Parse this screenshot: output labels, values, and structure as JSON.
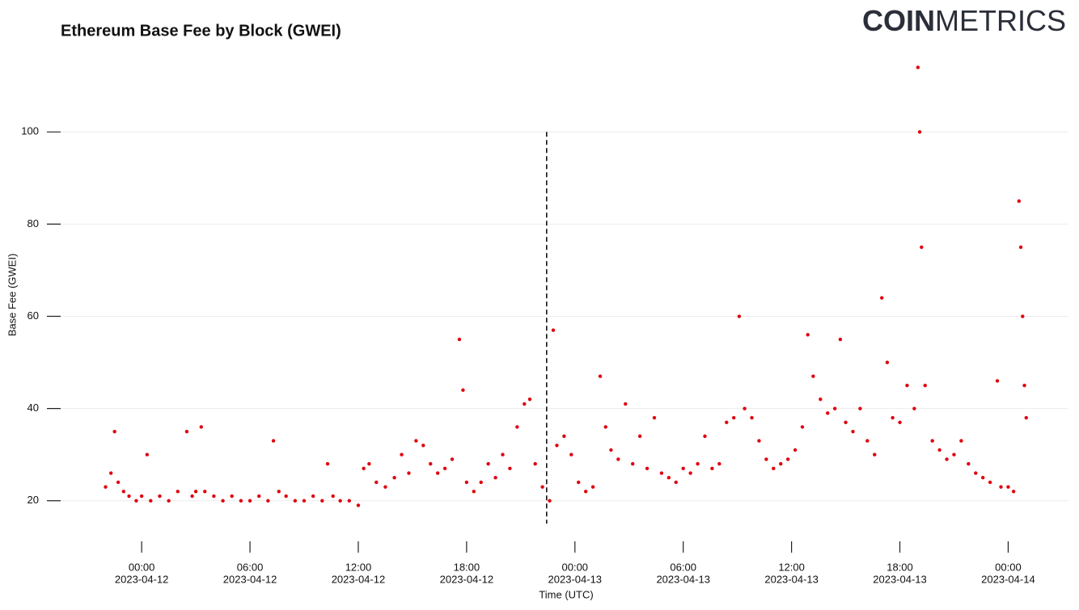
{
  "logo": {
    "bold": "COIN",
    "light": "METRICS"
  },
  "chart_data": {
    "type": "scatter",
    "title": "Ethereum Base Fee by Block (GWEI)",
    "x_label": "Time (UTC)",
    "y_label": "Base Fee (GWEI)",
    "color": "#e0000f",
    "grid": true,
    "vline": "2023-04-12T22:26",
    "xlim": [
      "2023-04-11T20:38",
      "2023-04-14T02:24"
    ],
    "ylim": [
      14,
      116
    ],
    "yticks": [
      20,
      40,
      60,
      80,
      100
    ],
    "xticks": [
      {
        "value": "2023-04-12T00:00",
        "label": [
          "00:00",
          "2023-04-12"
        ]
      },
      {
        "value": "2023-04-12T06:00",
        "label": [
          "06:00",
          "2023-04-12"
        ]
      },
      {
        "value": "2023-04-12T12:00",
        "label": [
          "12:00",
          "2023-04-12"
        ]
      },
      {
        "value": "2023-04-12T18:00",
        "label": [
          "18:00",
          "2023-04-12"
        ]
      },
      {
        "value": "2023-04-13T00:00",
        "label": [
          "00:00",
          "2023-04-13"
        ]
      },
      {
        "value": "2023-04-13T06:00",
        "label": [
          "06:00",
          "2023-04-13"
        ]
      },
      {
        "value": "2023-04-13T12:00",
        "label": [
          "12:00",
          "2023-04-13"
        ]
      },
      {
        "value": "2023-04-13T18:00",
        "label": [
          "18:00",
          "2023-04-13"
        ]
      },
      {
        "value": "2023-04-14T00:00",
        "label": [
          "00:00",
          "2023-04-14"
        ]
      }
    ],
    "x": [
      "2023-04-11T22:00",
      "2023-04-11T22:18",
      "2023-04-11T22:30",
      "2023-04-11T22:42",
      "2023-04-11T23:00",
      "2023-04-11T23:18",
      "2023-04-11T23:42",
      "2023-04-12T00:00",
      "2023-04-12T00:18",
      "2023-04-12T00:30",
      "2023-04-12T01:00",
      "2023-04-12T01:30",
      "2023-04-12T02:00",
      "2023-04-12T02:30",
      "2023-04-12T02:48",
      "2023-04-12T03:00",
      "2023-04-12T03:18",
      "2023-04-12T03:30",
      "2023-04-12T04:00",
      "2023-04-12T04:30",
      "2023-04-12T05:00",
      "2023-04-12T05:30",
      "2023-04-12T06:00",
      "2023-04-12T06:30",
      "2023-04-12T07:00",
      "2023-04-12T07:18",
      "2023-04-12T07:36",
      "2023-04-12T08:00",
      "2023-04-12T08:30",
      "2023-04-12T09:00",
      "2023-04-12T09:30",
      "2023-04-12T10:00",
      "2023-04-12T10:18",
      "2023-04-12T10:36",
      "2023-04-12T11:00",
      "2023-04-12T11:30",
      "2023-04-12T12:00",
      "2023-04-12T12:18",
      "2023-04-12T12:36",
      "2023-04-12T13:00",
      "2023-04-12T13:30",
      "2023-04-12T14:00",
      "2023-04-12T14:24",
      "2023-04-12T14:48",
      "2023-04-12T15:12",
      "2023-04-12T15:36",
      "2023-04-12T16:00",
      "2023-04-12T16:24",
      "2023-04-12T16:48",
      "2023-04-12T17:12",
      "2023-04-12T17:36",
      "2023-04-12T17:48",
      "2023-04-12T18:00",
      "2023-04-12T18:24",
      "2023-04-12T18:48",
      "2023-04-12T19:12",
      "2023-04-12T19:36",
      "2023-04-12T20:00",
      "2023-04-12T20:24",
      "2023-04-12T20:48",
      "2023-04-12T21:12",
      "2023-04-12T21:30",
      "2023-04-12T21:48",
      "2023-04-12T22:12",
      "2023-04-12T22:36",
      "2023-04-12T22:48",
      "2023-04-12T23:00",
      "2023-04-12T23:24",
      "2023-04-12T23:48",
      "2023-04-13T00:12",
      "2023-04-13T00:36",
      "2023-04-13T01:00",
      "2023-04-13T01:24",
      "2023-04-13T01:42",
      "2023-04-13T02:00",
      "2023-04-13T02:24",
      "2023-04-13T02:48",
      "2023-04-13T03:12",
      "2023-04-13T03:36",
      "2023-04-13T04:00",
      "2023-04-13T04:24",
      "2023-04-13T04:48",
      "2023-04-13T05:12",
      "2023-04-13T05:36",
      "2023-04-13T06:00",
      "2023-04-13T06:24",
      "2023-04-13T06:48",
      "2023-04-13T07:12",
      "2023-04-13T07:36",
      "2023-04-13T08:00",
      "2023-04-13T08:24",
      "2023-04-13T08:48",
      "2023-04-13T09:06",
      "2023-04-13T09:24",
      "2023-04-13T09:48",
      "2023-04-13T10:12",
      "2023-04-13T10:36",
      "2023-04-13T11:00",
      "2023-04-13T11:24",
      "2023-04-13T11:48",
      "2023-04-13T12:12",
      "2023-04-13T12:36",
      "2023-04-13T12:54",
      "2023-04-13T13:12",
      "2023-04-13T13:36",
      "2023-04-13T14:00",
      "2023-04-13T14:24",
      "2023-04-13T14:42",
      "2023-04-13T15:00",
      "2023-04-13T15:24",
      "2023-04-13T15:48",
      "2023-04-13T16:12",
      "2023-04-13T16:36",
      "2023-04-13T17:00",
      "2023-04-13T17:18",
      "2023-04-13T17:36",
      "2023-04-13T18:00",
      "2023-04-13T18:24",
      "2023-04-13T18:48",
      "2023-04-13T19:00",
      "2023-04-13T19:06",
      "2023-04-13T19:12",
      "2023-04-13T19:24",
      "2023-04-13T19:48",
      "2023-04-13T20:12",
      "2023-04-13T20:36",
      "2023-04-13T21:00",
      "2023-04-13T21:24",
      "2023-04-13T21:48",
      "2023-04-13T22:12",
      "2023-04-13T22:36",
      "2023-04-13T23:00",
      "2023-04-13T23:24",
      "2023-04-13T23:36",
      "2023-04-14T00:00",
      "2023-04-14T00:18",
      "2023-04-14T00:36",
      "2023-04-14T00:42",
      "2023-04-14T00:48",
      "2023-04-14T00:54",
      "2023-04-14T01:00"
    ],
    "values": [
      23,
      26,
      35,
      24,
      22,
      21,
      20,
      21,
      30,
      20,
      21,
      20,
      22,
      35,
      21,
      22,
      36,
      22,
      21,
      20,
      21,
      20,
      20,
      21,
      20,
      33,
      22,
      21,
      20,
      20,
      21,
      20,
      28,
      21,
      20,
      20,
      19,
      27,
      28,
      24,
      23,
      25,
      30,
      26,
      33,
      32,
      28,
      26,
      27,
      29,
      55,
      44,
      24,
      22,
      24,
      28,
      25,
      30,
      27,
      36,
      41,
      42,
      28,
      23,
      20,
      57,
      32,
      34,
      30,
      24,
      22,
      23,
      47,
      36,
      31,
      29,
      41,
      28,
      34,
      27,
      38,
      26,
      25,
      24,
      27,
      26,
      28,
      34,
      27,
      28,
      37,
      38,
      60,
      40,
      38,
      33,
      29,
      27,
      28,
      29,
      31,
      36,
      56,
      47,
      42,
      39,
      40,
      55,
      37,
      35,
      40,
      33,
      30,
      64,
      50,
      38,
      37,
      45,
      40,
      114,
      100,
      75,
      45,
      33,
      31,
      29,
      30,
      33,
      28,
      26,
      25,
      24,
      46,
      23,
      23,
      22,
      85,
      75,
      60,
      45,
      38
    ]
  }
}
